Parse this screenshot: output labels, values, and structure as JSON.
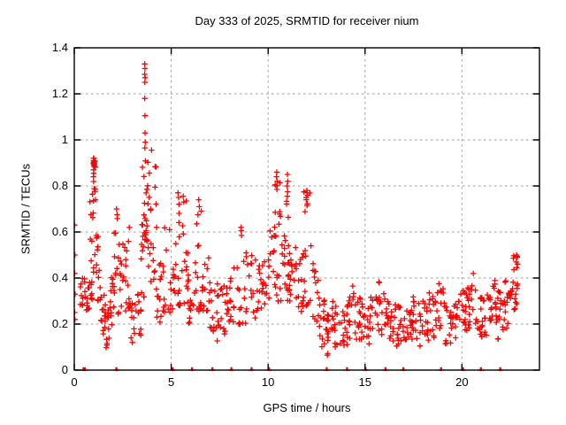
{
  "chart_data": {
    "type": "scatter",
    "title": "Day 333 of 2025, SRMTID for receiver nium",
    "xlabel": "GPS time / hours",
    "ylabel": "SRMTID / TECUs",
    "xlim": [
      0,
      24
    ],
    "ylim": [
      0,
      1.4
    ],
    "grid": true,
    "legend": "none",
    "marker": "plus-cross",
    "marker_color": "#ff0000",
    "grid_color": "#9e9e9e",
    "border_color": "#000000",
    "xticks": [
      {
        "v": 0,
        "label": "0"
      },
      {
        "v": 5,
        "label": "5"
      },
      {
        "v": 10,
        "label": "10"
      },
      {
        "v": 15,
        "label": "15"
      },
      {
        "v": 20,
        "label": "20"
      }
    ],
    "yticks": [
      {
        "v": 0,
        "label": "0"
      },
      {
        "v": 0.2,
        "label": "0.2"
      },
      {
        "v": 0.4,
        "label": "0.4"
      },
      {
        "v": 0.6,
        "label": "0.6"
      },
      {
        "v": 0.8,
        "label": "0.8"
      },
      {
        "v": 1.0,
        "label": "1"
      },
      {
        "v": 1.2,
        "label": "1.2"
      },
      {
        "v": 1.4,
        "label": "1.4"
      }
    ],
    "points": [
      [
        0.02,
        0.63
      ],
      [
        0.03,
        0.5
      ],
      [
        0.02,
        0.42
      ],
      [
        0.04,
        0.33
      ],
      [
        0.02,
        0.25
      ],
      [
        0.03,
        0.22
      ],
      [
        0.99,
        0.92
      ],
      [
        1.01,
        0.92
      ],
      [
        1.0,
        0.91
      ],
      [
        1.02,
        0.905
      ],
      [
        0.98,
        0.9
      ],
      [
        1.0,
        0.895
      ],
      [
        1.015,
        0.885
      ],
      [
        0.995,
        0.87
      ],
      [
        1.005,
        0.855
      ],
      [
        0.985,
        0.84
      ],
      [
        2.18,
        0.7
      ],
      [
        2.21,
        0.675
      ],
      [
        3.63,
        1.33
      ],
      [
        3.645,
        1.31
      ],
      [
        3.63,
        1.285
      ],
      [
        3.655,
        1.27
      ],
      [
        3.64,
        1.25
      ],
      [
        3.635,
        1.18
      ],
      [
        3.645,
        1.105
      ],
      [
        3.65,
        1.03
      ],
      [
        3.66,
        0.99
      ],
      [
        3.64,
        0.965
      ],
      [
        5.35,
        0.77
      ],
      [
        5.38,
        0.75
      ],
      [
        5.62,
        0.755
      ],
      [
        5.65,
        0.73
      ],
      [
        6.42,
        0.74
      ],
      [
        6.45,
        0.71
      ],
      [
        6.38,
        0.675
      ],
      [
        8.6,
        0.62
      ],
      [
        8.63,
        0.585
      ],
      [
        10.45,
        0.86
      ],
      [
        10.43,
        0.84
      ],
      [
        10.47,
        0.82
      ],
      [
        10.44,
        0.8
      ],
      [
        10.46,
        0.785
      ],
      [
        11.0,
        0.85
      ],
      [
        11.02,
        0.82
      ],
      [
        10.98,
        0.8
      ],
      [
        11.01,
        0.775
      ],
      [
        10.99,
        0.755
      ],
      [
        12.0,
        0.78
      ],
      [
        12.03,
        0.76
      ],
      [
        11.97,
        0.74
      ],
      [
        12.01,
        0.715
      ],
      [
        22.82,
        0.5
      ],
      [
        22.85,
        0.49
      ],
      [
        22.8,
        0.47
      ],
      [
        22.87,
        0.46
      ],
      [
        22.83,
        0.445
      ],
      [
        0.45,
        0
      ],
      [
        0.48,
        0
      ],
      [
        0.51,
        0
      ],
      [
        0.54,
        0
      ],
      [
        0.57,
        0
      ],
      [
        2.15,
        0
      ],
      [
        2.2,
        0
      ],
      [
        5.05,
        0
      ],
      [
        5.1,
        0
      ],
      [
        6.05,
        0
      ],
      [
        6.1,
        0
      ],
      [
        7.1,
        0
      ],
      [
        7.15,
        0
      ],
      [
        8.08,
        0
      ],
      [
        8.13,
        0
      ],
      [
        9.12,
        0
      ],
      [
        9.17,
        0
      ],
      [
        10.02,
        0
      ],
      [
        10.07,
        0
      ],
      [
        13.0,
        0
      ],
      [
        13.05,
        0
      ],
      [
        14.05,
        0
      ],
      [
        14.1,
        0
      ],
      [
        15.0,
        0
      ],
      [
        15.05,
        0
      ],
      [
        16.03,
        0
      ],
      [
        16.08,
        0
      ],
      [
        16.95,
        0
      ],
      [
        17.0,
        0
      ],
      [
        18.9,
        0
      ],
      [
        18.95,
        0
      ],
      [
        20.03,
        0
      ],
      [
        20.08,
        0
      ],
      [
        20.95,
        0
      ],
      [
        21.0,
        0
      ],
      [
        21.95,
        0
      ],
      [
        22.0,
        0
      ]
    ],
    "dense_columns_x0_x1_ymin_ymax_n": [
      [
        0.3,
        0.55,
        0.27,
        0.4,
        11
      ],
      [
        0.55,
        0.78,
        0.24,
        0.36,
        9
      ],
      [
        0.78,
        0.95,
        0.3,
        0.78,
        13
      ],
      [
        0.95,
        1.15,
        0.35,
        0.92,
        18
      ],
      [
        1.15,
        1.35,
        0.28,
        0.6,
        10
      ],
      [
        1.35,
        1.6,
        0.14,
        0.38,
        13
      ],
      [
        1.6,
        1.85,
        0.08,
        0.32,
        13
      ],
      [
        1.85,
        2.05,
        0.18,
        0.42,
        10
      ],
      [
        2.05,
        2.3,
        0.24,
        0.7,
        13
      ],
      [
        2.3,
        2.55,
        0.22,
        0.55,
        10
      ],
      [
        2.55,
        2.85,
        0.25,
        0.62,
        13
      ],
      [
        2.85,
        3.15,
        0.1,
        0.35,
        12
      ],
      [
        3.15,
        3.45,
        0.15,
        0.4,
        11
      ],
      [
        3.45,
        3.62,
        0.3,
        0.92,
        13
      ],
      [
        3.62,
        3.72,
        0.55,
        0.96,
        12
      ],
      [
        3.72,
        3.95,
        0.45,
        0.98,
        14
      ],
      [
        3.95,
        4.25,
        0.35,
        0.97,
        14
      ],
      [
        4.25,
        4.55,
        0.14,
        0.5,
        12
      ],
      [
        4.55,
        4.95,
        0.25,
        0.62,
        12
      ],
      [
        4.95,
        5.2,
        0.25,
        0.5,
        10
      ],
      [
        5.2,
        5.5,
        0.28,
        0.77,
        15
      ],
      [
        5.5,
        5.9,
        0.28,
        0.75,
        15
      ],
      [
        5.9,
        6.25,
        0.2,
        0.45,
        11
      ],
      [
        6.25,
        6.6,
        0.25,
        0.74,
        15
      ],
      [
        6.6,
        6.95,
        0.22,
        0.5,
        12
      ],
      [
        6.95,
        7.3,
        0.15,
        0.45,
        12
      ],
      [
        7.3,
        7.6,
        0.12,
        0.38,
        12
      ],
      [
        7.6,
        7.95,
        0.15,
        0.38,
        12
      ],
      [
        7.95,
        8.4,
        0.2,
        0.45,
        13
      ],
      [
        8.4,
        8.85,
        0.2,
        0.62,
        15
      ],
      [
        8.85,
        9.3,
        0.2,
        0.52,
        13
      ],
      [
        9.3,
        9.7,
        0.22,
        0.48,
        13
      ],
      [
        9.7,
        10.1,
        0.25,
        0.5,
        13
      ],
      [
        10.1,
        10.35,
        0.3,
        0.66,
        10
      ],
      [
        10.35,
        10.65,
        0.3,
        0.86,
        17
      ],
      [
        10.65,
        10.9,
        0.28,
        0.6,
        10
      ],
      [
        10.9,
        11.15,
        0.3,
        0.85,
        17
      ],
      [
        11.15,
        11.5,
        0.28,
        0.55,
        12
      ],
      [
        11.5,
        11.8,
        0.25,
        0.5,
        11
      ],
      [
        11.8,
        12.25,
        0.28,
        0.78,
        17
      ],
      [
        12.25,
        12.6,
        0.2,
        0.5,
        12
      ],
      [
        12.6,
        13.0,
        0.1,
        0.32,
        15
      ],
      [
        13.0,
        13.3,
        0.05,
        0.25,
        12
      ],
      [
        13.3,
        13.7,
        0.1,
        0.3,
        15
      ],
      [
        13.7,
        14.1,
        0.1,
        0.28,
        15
      ],
      [
        14.1,
        14.5,
        0.12,
        0.38,
        16
      ],
      [
        14.5,
        14.9,
        0.12,
        0.32,
        15
      ],
      [
        14.9,
        15.3,
        0.1,
        0.3,
        15
      ],
      [
        15.3,
        15.75,
        0.15,
        0.4,
        16
      ],
      [
        15.75,
        16.2,
        0.12,
        0.35,
        15
      ],
      [
        16.2,
        16.6,
        0.1,
        0.3,
        15
      ],
      [
        16.6,
        17.0,
        0.08,
        0.28,
        15
      ],
      [
        17.0,
        17.4,
        0.12,
        0.3,
        15
      ],
      [
        17.4,
        17.8,
        0.12,
        0.32,
        15
      ],
      [
        17.8,
        18.2,
        0.1,
        0.3,
        15
      ],
      [
        18.2,
        18.6,
        0.12,
        0.35,
        15
      ],
      [
        18.6,
        19.05,
        0.15,
        0.42,
        16
      ],
      [
        19.05,
        19.5,
        0.09,
        0.3,
        15
      ],
      [
        19.5,
        19.9,
        0.12,
        0.3,
        15
      ],
      [
        19.9,
        20.3,
        0.15,
        0.35,
        15
      ],
      [
        20.3,
        20.7,
        0.15,
        0.45,
        16
      ],
      [
        20.7,
        21.1,
        0.12,
        0.32,
        15
      ],
      [
        21.1,
        21.5,
        0.15,
        0.35,
        15
      ],
      [
        21.5,
        21.85,
        0.15,
        0.42,
        15
      ],
      [
        21.85,
        22.2,
        0.12,
        0.35,
        15
      ],
      [
        22.2,
        22.55,
        0.18,
        0.4,
        14
      ],
      [
        22.55,
        22.9,
        0.25,
        0.5,
        16
      ]
    ]
  }
}
